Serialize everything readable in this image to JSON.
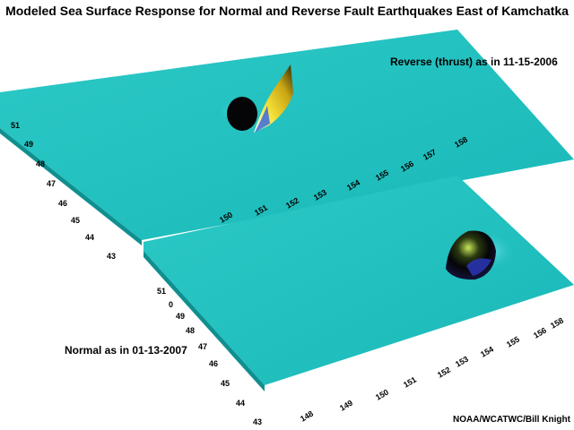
{
  "title": "Modeled Sea Surface Response for Normal and Reverse Fault Earthquakes East of Kamchatka",
  "panels": [
    {
      "id": "reverse",
      "label": "Reverse (thrust) as in 11-15-2006",
      "lat_ticks": [
        "51",
        "49",
        "48",
        "47",
        "46",
        "45",
        "44",
        "43"
      ],
      "lon_ticks": [
        "150",
        "151",
        "152",
        "153",
        "154",
        "155",
        "156",
        "157",
        "158"
      ]
    },
    {
      "id": "normal",
      "label": "Normal as in 01-13-2007",
      "lat_ticks": [
        "51",
        "0",
        "49",
        "48",
        "47",
        "46",
        "45",
        "44",
        "43"
      ],
      "lon_ticks": [
        "148",
        "149",
        "150",
        "151",
        "152",
        "153",
        "154",
        "155",
        "156",
        "158"
      ]
    }
  ],
  "credit": "NOAA/WCATWC/Bill Knight",
  "colors": {
    "sea_surface": "#1fbfbf",
    "uplift": "#f2e030",
    "trough": "#0a0a12"
  }
}
